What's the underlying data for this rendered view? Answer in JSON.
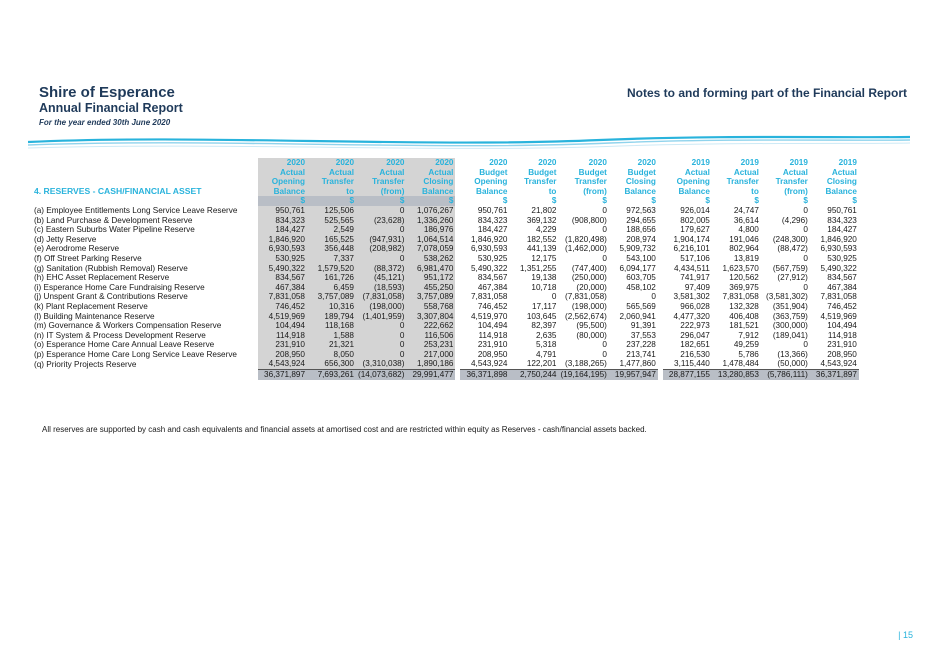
{
  "header": {
    "title": "Shire of Esperance",
    "subtitle": "Annual Financial Report",
    "period": "For the year ended 30th June 2020",
    "right_title": "Notes to and forming part of the Financial Report"
  },
  "section_title": "4. RESERVES - CASH/FINANCIAL ASSET",
  "columns": [
    {
      "year": "2020",
      "type": "Actual",
      "l1": "Opening",
      "l2": "Balance",
      "unit": "$"
    },
    {
      "year": "2020",
      "type": "Actual",
      "l1": "Transfer",
      "l2": "to",
      "unit": "$"
    },
    {
      "year": "2020",
      "type": "Actual",
      "l1": "Transfer",
      "l2": "(from)",
      "unit": "$"
    },
    {
      "year": "2020",
      "type": "Actual",
      "l1": "Closing",
      "l2": "Balance",
      "unit": "$"
    },
    {
      "year": "2020",
      "type": "Budget",
      "l1": "Opening",
      "l2": "Balance",
      "unit": "$"
    },
    {
      "year": "2020",
      "type": "Budget",
      "l1": "Transfer",
      "l2": "to",
      "unit": "$"
    },
    {
      "year": "2020",
      "type": "Budget",
      "l1": "Transfer",
      "l2": "(from)",
      "unit": "$"
    },
    {
      "year": "2020",
      "type": "Budget",
      "l1": "Closing",
      "l2": "Balance",
      "unit": "$"
    },
    {
      "year": "2019",
      "type": "Actual",
      "l1": "Opening",
      "l2": "Balance",
      "unit": "$"
    },
    {
      "year": "2019",
      "type": "Actual",
      "l1": "Transfer",
      "l2": "to",
      "unit": "$"
    },
    {
      "year": "2019",
      "type": "Actual",
      "l1": "Transfer",
      "l2": "(from)",
      "unit": "$"
    },
    {
      "year": "2019",
      "type": "Actual",
      "l1": "Closing",
      "l2": "Balance",
      "unit": "$"
    }
  ],
  "rows": [
    {
      "label": "(a)  Employee Entitlements Long Service Leave Reserve",
      "v": [
        "950,761",
        "125,506",
        "0",
        "1,076,267",
        "950,761",
        "21,802",
        "0",
        "972,563",
        "926,014",
        "24,747",
        "0",
        "950,761"
      ]
    },
    {
      "label": "(b)  Land Purchase & Development Reserve",
      "v": [
        "834,323",
        "525,565",
        "(23,628)",
        "1,336,260",
        "834,323",
        "369,132",
        "(908,800)",
        "294,655",
        "802,005",
        "36,614",
        "(4,296)",
        "834,323"
      ]
    },
    {
      "label": "(c)  Eastern Suburbs Water Pipeline Reserve",
      "v": [
        "184,427",
        "2,549",
        "0",
        "186,976",
        "184,427",
        "4,229",
        "0",
        "188,656",
        "179,627",
        "4,800",
        "0",
        "184,427"
      ]
    },
    {
      "label": "(d)  Jetty Reserve",
      "v": [
        "1,846,920",
        "165,525",
        "(947,931)",
        "1,064,514",
        "1,846,920",
        "182,552",
        "(1,820,498)",
        "208,974",
        "1,904,174",
        "191,046",
        "(248,300)",
        "1,846,920"
      ]
    },
    {
      "label": "(e)  Aerodrome Reserve",
      "v": [
        "6,930,593",
        "356,448",
        "(208,982)",
        "7,078,059",
        "6,930,593",
        "441,139",
        "(1,462,000)",
        "5,909,732",
        "6,216,101",
        "802,964",
        "(88,472)",
        "6,930,593"
      ]
    },
    {
      "label": "(f)   Off Street Parking Reserve",
      "v": [
        "530,925",
        "7,337",
        "0",
        "538,262",
        "530,925",
        "12,175",
        "0",
        "543,100",
        "517,106",
        "13,819",
        "0",
        "530,925"
      ]
    },
    {
      "label": "(g)  Sanitation (Rubbish Removal) Reserve",
      "v": [
        "5,490,322",
        "1,579,520",
        "(88,372)",
        "6,981,470",
        "5,490,322",
        "1,351,255",
        "(747,400)",
        "6,094,177",
        "4,434,511",
        "1,623,570",
        "(567,759)",
        "5,490,322"
      ]
    },
    {
      "label": "(h)  EHC Asset Replacement Reserve",
      "v": [
        "834,567",
        "161,726",
        "(45,121)",
        "951,172",
        "834,567",
        "19,138",
        "(250,000)",
        "603,705",
        "741,917",
        "120,562",
        "(27,912)",
        "834,567"
      ]
    },
    {
      "label": "(i)   Esperance Home Care Fundraising Reserve",
      "v": [
        "467,384",
        "6,459",
        "(18,593)",
        "455,250",
        "467,384",
        "10,718",
        "(20,000)",
        "458,102",
        "97,409",
        "369,975",
        "0",
        "467,384"
      ]
    },
    {
      "label": "(j)   Unspent Grant & Contributions Reserve",
      "v": [
        "7,831,058",
        "3,757,089",
        "(7,831,058)",
        "3,757,089",
        "7,831,058",
        "0",
        "(7,831,058)",
        "0",
        "3,581,302",
        "7,831,058",
        "(3,581,302)",
        "7,831,058"
      ]
    },
    {
      "label": "(k)  Plant Replacement Reserve",
      "v": [
        "746,452",
        "10,316",
        "(198,000)",
        "558,768",
        "746,452",
        "17,117",
        "(198,000)",
        "565,569",
        "966,028",
        "132,328",
        "(351,904)",
        "746,452"
      ]
    },
    {
      "label": "(l)   Building Maintenance Reserve",
      "v": [
        "4,519,969",
        "189,794",
        "(1,401,959)",
        "3,307,804",
        "4,519,970",
        "103,645",
        "(2,562,674)",
        "2,060,941",
        "4,477,320",
        "406,408",
        "(363,759)",
        "4,519,969"
      ]
    },
    {
      "label": "(m) Governance & Workers Compensation Reserve",
      "v": [
        "104,494",
        "118,168",
        "0",
        "222,662",
        "104,494",
        "82,397",
        "(95,500)",
        "91,391",
        "222,973",
        "181,521",
        "(300,000)",
        "104,494"
      ]
    },
    {
      "label": "(n)  IT System & Process Development Reserve",
      "v": [
        "114,918",
        "1,588",
        "0",
        "116,506",
        "114,918",
        "2,635",
        "(80,000)",
        "37,553",
        "296,047",
        "7,912",
        "(189,041)",
        "114,918"
      ]
    },
    {
      "label": "(o)  Esperance Home Care Annual Leave Reserve",
      "v": [
        "231,910",
        "21,321",
        "0",
        "253,231",
        "231,910",
        "5,318",
        "0",
        "237,228",
        "182,651",
        "49,259",
        "0",
        "231,910"
      ]
    },
    {
      "label": "(p)  Esperance Home Care Long Service Leave Reserve",
      "v": [
        "208,950",
        "8,050",
        "0",
        "217,000",
        "208,950",
        "4,791",
        "0",
        "213,741",
        "216,530",
        "5,786",
        "(13,366)",
        "208,950"
      ]
    },
    {
      "label": "(q)  Priority Projects Reserve",
      "v": [
        "4,543,924",
        "656,300",
        "(3,310,038)",
        "1,890,186",
        "4,543,924",
        "122,201",
        "(3,188,265)",
        "1,477,860",
        "3,115,440",
        "1,478,484",
        "(50,000)",
        "4,543,924"
      ]
    }
  ],
  "totals": [
    "36,371,897",
    "7,693,261",
    "(14,073,682)",
    "29,991,477",
    "36,371,898",
    "2,750,244",
    "(19,164,195)",
    "19,957,947",
    "28,877,155",
    "13,280,853",
    "(5,786,111)",
    "36,371,897"
  ],
  "footnote": "All reserves are supported by cash and cash equivalents and financial assets at amortised cost and are restricted within equity as Reserves - cash/financial assets backed.",
  "page_number": "| 15"
}
